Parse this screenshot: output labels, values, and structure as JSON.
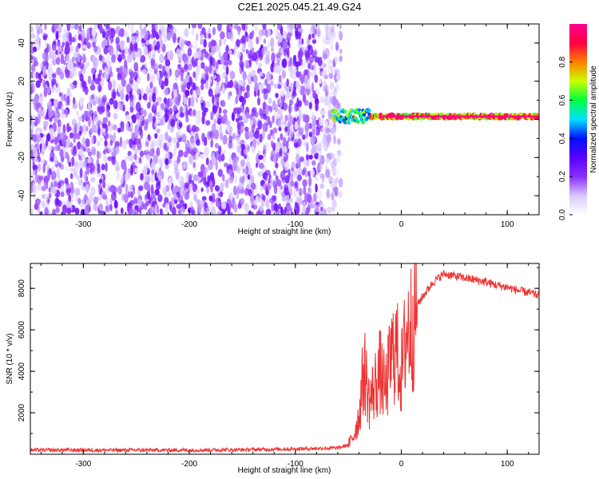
{
  "title": "C2E1.2025.045.21.49.G24",
  "chart_data": [
    {
      "type": "heatmap",
      "xlabel": "Height of straight line (km)",
      "ylabel": "Frequency (Hz)",
      "xlim": [
        -350,
        130
      ],
      "ylim": [
        -50,
        50
      ],
      "x_ticks": [
        -300,
        -200,
        -100,
        0,
        100
      ],
      "y_ticks": [
        -40,
        -20,
        0,
        20,
        40
      ],
      "colorbar": {
        "label": "Normalized spectral amplitude",
        "range": [
          0,
          1
        ],
        "ticks": [
          "0.0",
          "0.2",
          "0.4",
          "0.6",
          "0.8"
        ],
        "colors": [
          "#ffffff",
          "#d8c8ff",
          "#8a2cff",
          "#5a00ff",
          "#0010ff",
          "#00e0ff",
          "#00ff40",
          "#c8ff00",
          "#ff8000",
          "#ff0040",
          "#ff0090"
        ]
      },
      "description_regions": {
        "noise_region_x": [
          -350,
          -65
        ],
        "signal_tone_frequency_hz": 1.5,
        "signal_start_x": -65
      }
    },
    {
      "type": "line",
      "xlabel": "Height of straight line (km)",
      "ylabel": "SNR (10 * v/v)",
      "xlim": [
        -350,
        130
      ],
      "ylim": [
        0,
        9200
      ],
      "x_ticks": [
        -300,
        -200,
        -100,
        0,
        100
      ],
      "y_ticks": [
        2000,
        4000,
        6000,
        8000
      ],
      "series": [
        {
          "color": "#ee3333",
          "x": [
            -350,
            -300,
            -250,
            -200,
            -150,
            -100,
            -60,
            -50,
            -45,
            -40,
            -35,
            -30,
            -25,
            -20,
            -15,
            -10,
            -5,
            0,
            5,
            10,
            15,
            20,
            30,
            40,
            50,
            60,
            70,
            80,
            90,
            100,
            110,
            120,
            130
          ],
          "values": [
            200,
            200,
            200,
            200,
            220,
            260,
            300,
            450,
            900,
            1800,
            4200,
            2500,
            3300,
            4000,
            3000,
            4600,
            5200,
            3800,
            6000,
            6200,
            7200,
            7600,
            8300,
            8700,
            8600,
            8500,
            8400,
            8300,
            8150,
            8050,
            7900,
            7800,
            7650
          ]
        }
      ]
    }
  ]
}
